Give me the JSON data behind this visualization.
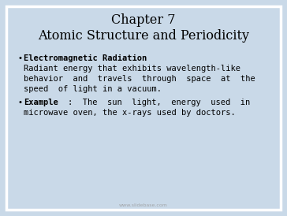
{
  "title_line1": "Chapter 7",
  "title_line2": "Atomic Structure and Periodicity",
  "bullet1_bold": "Electromagnetic Radiation",
  "bullet1_body_line1": "Radiant energy that exhibits wavelength-like",
  "bullet1_body_line2": "behavior  and  travels  through  space  at  the",
  "bullet1_body_line3": "speed  of light in a vacuum.",
  "bullet2_bold": "Example",
  "bullet2_rest_line1": ":  The  sun  light,  energy  used  in",
  "bullet2_rest_line2": "microwave oven, the x-rays used by doctors.",
  "watermark": "www.slidebase.com",
  "bg_color": "#c9d9e8",
  "text_color": "#000000",
  "title_fontsize": 11.5,
  "body_fontsize": 7.5,
  "bold_fontsize": 7.5,
  "watermark_fontsize": 4.5,
  "border_color": "#ffffff",
  "border_linewidth": 2.5
}
